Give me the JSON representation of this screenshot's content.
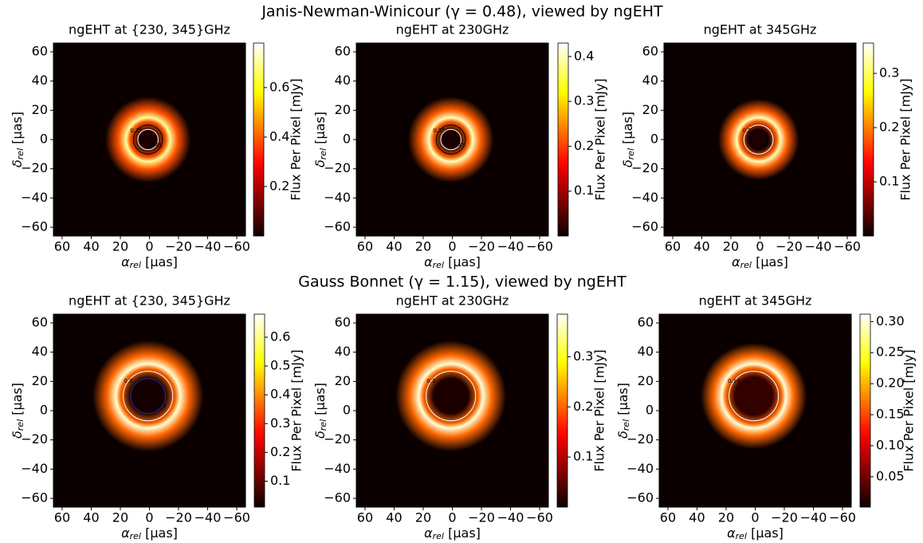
{
  "figure_titles": [
    "Janis-Newman-Winicour (γ = 0.48), viewed by ngEHT",
    "Gauss Bonnet (γ = 1.15), viewed by ngEHT"
  ],
  "chart_data": [
    {
      "type": "image",
      "title": "ngEHT at {230, 345}GHz",
      "xlabel": {
        "symbol": "α",
        "sub": "rel",
        "unit": " [μas]"
      },
      "ylabel": {
        "symbol": "δ",
        "sub": "rel",
        "unit": " [μas]"
      },
      "xlim": [
        66,
        -66
      ],
      "ylim": [
        -66,
        66
      ],
      "xticks": [
        60,
        40,
        20,
        0,
        {
          "value": -20,
          "label": "−20"
        },
        {
          "value": -40,
          "label": "−40"
        },
        {
          "value": -60,
          "label": "−60"
        }
      ],
      "yticks": [
        {
          "value": -60,
          "label": "−60"
        },
        {
          "value": -40,
          "label": "−40"
        },
        {
          "value": -20,
          "label": "−20"
        },
        0,
        20,
        40,
        60
      ],
      "ring": {
        "x": 1,
        "y": 0,
        "radius": 15,
        "width": 9,
        "peak": 0.7,
        "core": 0.02
      },
      "contours": [
        {
          "level": 0.35,
          "radius": 10,
          "color": "#000000"
        },
        {
          "level": 0.45,
          "radius": 7,
          "color": "#ffffff"
        }
      ],
      "colorbar": {
        "label": "Flux Per Pixel [mJy]",
        "lim": [
          0,
          0.78
        ],
        "ticks": [
          0.2,
          0.4,
          0.6
        ]
      }
    },
    {
      "type": "image",
      "title": "ngEHT at 230GHz",
      "xlabel": {
        "symbol": "α",
        "sub": "rel",
        "unit": " [μas]"
      },
      "ylabel": {
        "symbol": "δ",
        "sub": "rel",
        "unit": " [μas]"
      },
      "xlim": [
        66,
        -66
      ],
      "ylim": [
        -66,
        66
      ],
      "xticks": [
        60,
        40,
        20,
        0,
        {
          "value": -20,
          "label": "−20"
        },
        {
          "value": -40,
          "label": "−40"
        },
        {
          "value": -60,
          "label": "−60"
        }
      ],
      "yticks": [
        {
          "value": -60,
          "label": "−60"
        },
        {
          "value": -40,
          "label": "−40"
        },
        {
          "value": -20,
          "label": "−20"
        },
        0,
        20,
        40,
        60
      ],
      "ring": {
        "x": 1,
        "y": 0,
        "radius": 15,
        "width": 9,
        "peak": 0.4,
        "core": 0.01
      },
      "contours": [
        {
          "level": 0.35,
          "radius": 10,
          "color": "#000000"
        },
        {
          "level": 0.45,
          "radius": 7,
          "color": "#ffffff"
        }
      ],
      "colorbar": {
        "label": "Flux Per Pixel [mJy]",
        "lim": [
          0,
          0.43
        ],
        "ticks": [
          0.1,
          0.2,
          0.3,
          0.4
        ]
      }
    },
    {
      "type": "image",
      "title": "ngEHT at 345GHz",
      "xlabel": {
        "symbol": "α",
        "sub": "rel",
        "unit": " [μas]"
      },
      "ylabel": {
        "symbol": "δ",
        "sub": "rel",
        "unit": " [μas]"
      },
      "xlim": [
        66,
        -66
      ],
      "ylim": [
        -66,
        66
      ],
      "xticks": [
        60,
        40,
        20,
        0,
        {
          "value": -20,
          "label": "−20"
        },
        {
          "value": -40,
          "label": "−40"
        },
        {
          "value": -60,
          "label": "−60"
        }
      ],
      "yticks": [
        {
          "value": -60,
          "label": "−60"
        },
        {
          "value": -40,
          "label": "−40"
        },
        {
          "value": -20,
          "label": "−20"
        },
        0,
        20,
        40,
        60
      ],
      "ring": {
        "x": 1,
        "y": 0,
        "radius": 15,
        "width": 8,
        "peak": 0.33,
        "core": 0.01
      },
      "contours": [
        {
          "level": 0.2,
          "radius": 10,
          "color": "#ffffff"
        },
        {
          "level": 0.27,
          "radius": 6,
          "color": "#000000"
        }
      ],
      "colorbar": {
        "label": "Flux Per Pixel [mJy]",
        "lim": [
          0,
          0.356
        ],
        "ticks": [
          0.1,
          0.2,
          0.3
        ]
      }
    },
    {
      "type": "image",
      "title": "ngEHT at {230, 345}GHz",
      "xlabel": {
        "symbol": "α",
        "sub": "rel",
        "unit": " [μas]"
      },
      "ylabel": {
        "symbol": "δ",
        "sub": "rel",
        "unit": " [μas]"
      },
      "xlim": [
        66,
        -66
      ],
      "ylim": [
        -66,
        66
      ],
      "xticks": [
        60,
        40,
        20,
        0,
        {
          "value": -20,
          "label": "−20"
        },
        {
          "value": -40,
          "label": "−40"
        },
        {
          "value": -60,
          "label": "−60"
        }
      ],
      "yticks": [
        {
          "value": -60,
          "label": "−60"
        },
        {
          "value": -40,
          "label": "−40"
        },
        {
          "value": -20,
          "label": "−20"
        },
        0,
        20,
        40,
        60
      ],
      "ring": {
        "x": 1,
        "y": 10,
        "radius": 22,
        "width": 10,
        "peak": 0.65,
        "core": 0.02
      },
      "contours": [
        {
          "level": 0.3,
          "radius": 17,
          "color": "#ffffff"
        },
        {
          "level": 0.2,
          "radius": 12,
          "color": "#2a2aa0"
        }
      ],
      "colorbar": {
        "label": "Flux Per Pixel [mJy]",
        "lim": [
          0.01,
          0.68
        ],
        "ticks": [
          0.1,
          0.2,
          0.3,
          0.4,
          0.5,
          0.6
        ]
      }
    },
    {
      "type": "image",
      "title": "ngEHT at 230GHz",
      "xlabel": {
        "symbol": "α",
        "sub": "rel",
        "unit": " [μas]"
      },
      "ylabel": {
        "symbol": "δ",
        "sub": "rel",
        "unit": " [μas]"
      },
      "xlim": [
        66,
        -66
      ],
      "ylim": [
        -66,
        66
      ],
      "xticks": [
        60,
        40,
        20,
        0,
        {
          "value": -20,
          "label": "−20"
        },
        {
          "value": -40,
          "label": "−40"
        },
        {
          "value": -60,
          "label": "−60"
        }
      ],
      "yticks": [
        {
          "value": -60,
          "label": "−60"
        },
        {
          "value": -40,
          "label": "−40"
        },
        {
          "value": -20,
          "label": "−20"
        },
        0,
        20,
        40,
        60
      ],
      "ring": {
        "x": 1,
        "y": 10,
        "radius": 22,
        "width": 10,
        "peak": 0.37,
        "core": 0.01
      },
      "contours": [
        {
          "level": 0.3,
          "radius": 17,
          "color": "#ffffff"
        }
      ],
      "colorbar": {
        "label": "Flux Per Pixel [mJy]",
        "lim": [
          0,
          0.385
        ],
        "ticks": [
          0.1,
          0.2,
          0.3
        ]
      }
    },
    {
      "type": "image",
      "title": "ngEHT at 345GHz",
      "xlabel": {
        "symbol": "α",
        "sub": "rel",
        "unit": " [μas]"
      },
      "ylabel": {
        "symbol": "δ",
        "sub": "rel",
        "unit": " [μas]"
      },
      "xlim": [
        66,
        -66
      ],
      "ylim": [
        -66,
        66
      ],
      "xticks": [
        60,
        40,
        20,
        0,
        {
          "value": -20,
          "label": "−20"
        },
        {
          "value": -40,
          "label": "−40"
        },
        {
          "value": -60,
          "label": "−60"
        }
      ],
      "yticks": [
        {
          "value": -60,
          "label": "−60"
        },
        {
          "value": -40,
          "label": "−40"
        },
        {
          "value": -20,
          "label": "−20"
        },
        0,
        20,
        40,
        60
      ],
      "ring": {
        "x": 1,
        "y": 10,
        "radius": 22,
        "width": 9,
        "peak": 0.3,
        "core": 0.02
      },
      "contours": [
        {
          "level": 0.14,
          "radius": 17,
          "color": "#ffffff"
        }
      ],
      "colorbar": {
        "label": "Flux Per Pixel [mJy]",
        "lim": [
          0.001,
          0.312
        ],
        "ticks": [
          0.05,
          {
            "value": 0.1,
            "label": "0.10"
          },
          0.15,
          {
            "value": 0.2,
            "label": "0.20"
          },
          0.25,
          {
            "value": 0.3,
            "label": "0.30"
          }
        ]
      }
    }
  ]
}
